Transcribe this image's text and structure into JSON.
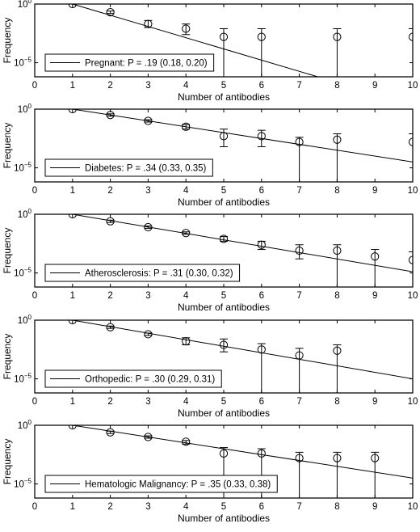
{
  "chart_data": [
    {
      "type": "scatter",
      "legend_label": "Pregnant: P = .19 (0.18, 0.20)",
      "legend_placement": "bottom-left",
      "xlabel": "Number of antibodies",
      "ylabel": "Frequency",
      "xlim": [
        0,
        10
      ],
      "ylim_log10": [
        -6.2,
        0
      ],
      "y_scale": "log",
      "grid": false,
      "x_ticks": [
        "0",
        "1",
        "2",
        "3",
        "4",
        "5",
        "6",
        "7",
        "8",
        "9",
        "10"
      ],
      "y_tick_labels": [
        {
          "base": "10",
          "exp": "0",
          "log10": 0
        },
        {
          "base": "10",
          "exp": "−5",
          "log10": -5
        }
      ],
      "fit_log10_end": [
        0,
        -8.6
      ],
      "points": [
        {
          "x": 1,
          "log10_y": 0.0,
          "log10_upper": 0.0,
          "log10_lower": 0.0
        },
        {
          "x": 2,
          "log10_y": -0.7,
          "log10_upper": -0.6,
          "log10_lower": -0.8
        },
        {
          "x": 3,
          "log10_y": -1.7,
          "log10_upper": -1.4,
          "log10_lower": -2.0
        },
        {
          "x": 4,
          "log10_y": -2.1,
          "log10_upper": -1.7,
          "log10_lower": -2.6
        },
        {
          "x": 5,
          "log10_y": -2.8,
          "log10_upper": -2.1,
          "log10_lower": -6.2
        },
        {
          "x": 6,
          "log10_y": -2.8,
          "log10_upper": -2.1,
          "log10_lower": -6.2
        },
        {
          "x": 8,
          "log10_y": -2.8,
          "log10_upper": -2.1,
          "log10_lower": -6.2
        },
        {
          "x": 10,
          "log10_y": -2.8,
          "log10_upper": -2.1,
          "log10_lower": -6.2
        }
      ]
    },
    {
      "type": "scatter",
      "legend_label": "Diabetes: P = .34 (0.33, 0.35)",
      "legend_placement": "bottom-left",
      "xlabel": "Number of antibodies",
      "ylabel": "Frequency",
      "xlim": [
        0,
        10
      ],
      "ylim_log10": [
        -6.2,
        0
      ],
      "y_scale": "log",
      "grid": false,
      "x_ticks": [
        "0",
        "1",
        "2",
        "3",
        "4",
        "5",
        "6",
        "7",
        "8",
        "9",
        "10"
      ],
      "y_tick_labels": [
        {
          "base": "10",
          "exp": "0",
          "log10": 0
        },
        {
          "base": "10",
          "exp": "−5",
          "log10": -5
        }
      ],
      "fit_log10_end": [
        0,
        -4.5
      ],
      "points": [
        {
          "x": 1,
          "log10_y": 0.0,
          "log10_upper": 0.0,
          "log10_lower": 0.0
        },
        {
          "x": 2,
          "log10_y": -0.5,
          "log10_upper": -0.4,
          "log10_lower": -0.6
        },
        {
          "x": 3,
          "log10_y": -1.0,
          "log10_upper": -0.9,
          "log10_lower": -1.1
        },
        {
          "x": 4,
          "log10_y": -1.5,
          "log10_upper": -1.3,
          "log10_lower": -1.7
        },
        {
          "x": 5,
          "log10_y": -2.3,
          "log10_upper": -1.7,
          "log10_lower": -3.2
        },
        {
          "x": 6,
          "log10_y": -2.3,
          "log10_upper": -1.8,
          "log10_lower": -3.2
        },
        {
          "x": 7,
          "log10_y": -2.8,
          "log10_upper": -2.4,
          "log10_lower": -6.2
        },
        {
          "x": 8,
          "log10_y": -2.6,
          "log10_upper": -2.1,
          "log10_lower": -6.2
        },
        {
          "x": 10,
          "log10_y": -2.8,
          "log10_upper": -2.1,
          "log10_lower": -6.2
        }
      ]
    },
    {
      "type": "scatter",
      "legend_label": "Atherosclerosis:  P = .31 (0.30, 0.32)",
      "legend_placement": "bottom-left",
      "xlabel": "Number of antibodies",
      "ylabel": "Frequency",
      "xlim": [
        0,
        10
      ],
      "ylim_log10": [
        -6.2,
        0
      ],
      "y_scale": "log",
      "grid": false,
      "x_ticks": [
        "0",
        "1",
        "2",
        "3",
        "4",
        "5",
        "6",
        "7",
        "8",
        "9",
        "10"
      ],
      "y_tick_labels": [
        {
          "base": "10",
          "exp": "0",
          "log10": 0
        },
        {
          "base": "10",
          "exp": "−5",
          "log10": -5
        }
      ],
      "fit_log10_end": [
        0,
        -4.9
      ],
      "points": [
        {
          "x": 1,
          "log10_y": 0.0,
          "log10_upper": 0.0,
          "log10_lower": 0.0
        },
        {
          "x": 2,
          "log10_y": -0.6,
          "log10_upper": -0.5,
          "log10_lower": -0.7
        },
        {
          "x": 3,
          "log10_y": -1.1,
          "log10_upper": -1.0,
          "log10_lower": -1.2
        },
        {
          "x": 4,
          "log10_y": -1.6,
          "log10_upper": -1.5,
          "log10_lower": -1.7
        },
        {
          "x": 5,
          "log10_y": -2.1,
          "log10_upper": -1.9,
          "log10_lower": -2.3
        },
        {
          "x": 6,
          "log10_y": -2.6,
          "log10_upper": -2.3,
          "log10_lower": -3.0
        },
        {
          "x": 7,
          "log10_y": -3.1,
          "log10_upper": -2.6,
          "log10_lower": -3.8
        },
        {
          "x": 8,
          "log10_y": -3.1,
          "log10_upper": -2.6,
          "log10_lower": -6.2
        },
        {
          "x": 9,
          "log10_y": -3.6,
          "log10_upper": -3.0,
          "log10_lower": -6.2
        },
        {
          "x": 10,
          "log10_y": -3.9,
          "log10_upper": -3.2,
          "log10_lower": -6.2
        }
      ]
    },
    {
      "type": "scatter",
      "legend_label": "Orthopedic:   P = .30 (0.29, 0.31)",
      "legend_placement": "bottom-left",
      "xlabel": "Number of antibodies",
      "ylabel": "Frequency",
      "xlim": [
        0,
        10
      ],
      "ylim_log10": [
        -6.2,
        0
      ],
      "y_scale": "log",
      "grid": false,
      "x_ticks": [
        "0",
        "1",
        "2",
        "3",
        "4",
        "5",
        "6",
        "7",
        "8",
        "9",
        "10"
      ],
      "y_tick_labels": [
        {
          "base": "10",
          "exp": "0",
          "log10": 0
        },
        {
          "base": "10",
          "exp": "−5",
          "log10": -5
        }
      ],
      "fit_log10_end": [
        0,
        -5.0
      ],
      "points": [
        {
          "x": 1,
          "log10_y": 0.0,
          "log10_upper": 0.0,
          "log10_lower": 0.0
        },
        {
          "x": 2,
          "log10_y": -0.6,
          "log10_upper": -0.5,
          "log10_lower": -0.7
        },
        {
          "x": 3,
          "log10_y": -1.2,
          "log10_upper": -1.1,
          "log10_lower": -1.3
        },
        {
          "x": 4,
          "log10_y": -1.8,
          "log10_upper": -1.5,
          "log10_lower": -2.1
        },
        {
          "x": 5,
          "log10_y": -2.1,
          "log10_upper": -1.6,
          "log10_lower": -2.7
        },
        {
          "x": 6,
          "log10_y": -2.5,
          "log10_upper": -2.0,
          "log10_lower": -6.2
        },
        {
          "x": 7,
          "log10_y": -3.0,
          "log10_upper": -2.4,
          "log10_lower": -6.2
        },
        {
          "x": 8,
          "log10_y": -2.6,
          "log10_upper": -2.1,
          "log10_lower": -6.2
        }
      ]
    },
    {
      "type": "scatter",
      "legend_label": "Hematologic Malignancy:  P = .35 (0.33, 0.38)",
      "legend_placement": "bottom-left",
      "xlabel": "Number of antibodies",
      "ylabel": "Frequency",
      "xlim": [
        0,
        10
      ],
      "ylim_log10": [
        -6.2,
        0
      ],
      "y_scale": "log",
      "grid": false,
      "x_ticks": [
        "0",
        "1",
        "2",
        "3",
        "4",
        "5",
        "6",
        "7",
        "8",
        "9",
        "10"
      ],
      "y_tick_labels": [
        {
          "base": "10",
          "exp": "0",
          "log10": 0
        },
        {
          "base": "10",
          "exp": "−5",
          "log10": -5
        }
      ],
      "fit_log10_end": [
        0,
        -4.5
      ],
      "points": [
        {
          "x": 1,
          "log10_y": 0.0,
          "log10_upper": 0.0,
          "log10_lower": 0.0
        },
        {
          "x": 2,
          "log10_y": -0.6,
          "log10_upper": -0.5,
          "log10_lower": -0.7
        },
        {
          "x": 3,
          "log10_y": -1.0,
          "log10_upper": -0.9,
          "log10_lower": -1.1
        },
        {
          "x": 4,
          "log10_y": -1.4,
          "log10_upper": -1.3,
          "log10_lower": -1.6
        },
        {
          "x": 5,
          "log10_y": -2.4,
          "log10_upper": -1.9,
          "log10_lower": -6.2
        },
        {
          "x": 6,
          "log10_y": -2.4,
          "log10_upper": -2.0,
          "log10_lower": -6.2
        },
        {
          "x": 7,
          "log10_y": -2.8,
          "log10_upper": -2.3,
          "log10_lower": -6.2
        },
        {
          "x": 8,
          "log10_y": -2.8,
          "log10_upper": -2.3,
          "log10_lower": -6.2
        },
        {
          "x": 9,
          "log10_y": -2.8,
          "log10_upper": -2.3,
          "log10_lower": -6.2
        }
      ]
    }
  ]
}
